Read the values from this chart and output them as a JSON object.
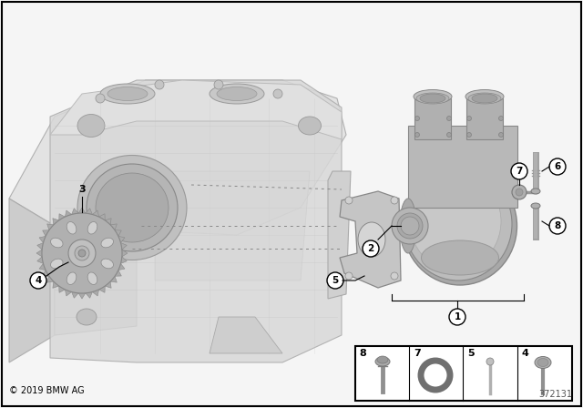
{
  "bg_color": "#f5f5f5",
  "border_color": "#000000",
  "copyright_text": "© 2019 BMW AG",
  "diagram_number": "372131",
  "fig_width": 6.4,
  "fig_height": 4.48,
  "dpi": 100,
  "engine_face": "#d5d5d5",
  "engine_shadow": "#b8b8b8",
  "engine_light": "#e8e8e8",
  "pump_main": "#b5b5b5",
  "pump_light": "#cccccc",
  "pump_dark": "#909090",
  "gear_color": "#aaaaaa",
  "gear_dark": "#888888",
  "gasket_color": "#c0c0c0",
  "line_color": "#333333",
  "label_bg": "#ffffff"
}
